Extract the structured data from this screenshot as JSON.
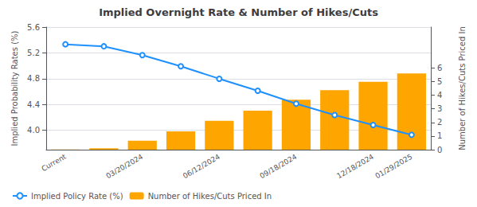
{
  "chart_data": {
    "type": "bar",
    "title": "Implied Overnight Rate & Number of Hikes/Cuts",
    "categories": [
      "Current",
      null,
      "03/20/2024",
      null,
      "06/12/2024",
      null,
      "09/18/2024",
      null,
      "12/18/2024",
      "01/29/2025"
    ],
    "series": [
      {
        "name": "Implied Policy Rate (%)",
        "type": "line",
        "color": "#1e90ff",
        "axis": "y",
        "values": [
          5.333,
          5.302,
          5.165,
          4.992,
          4.799,
          4.613,
          4.413,
          4.236,
          4.083,
          3.93
        ]
      },
      {
        "name": "Number of Hikes/Cuts Priced In",
        "type": "bar",
        "color": "#ffa500",
        "axis": "y2",
        "values": [
          0.012,
          0.108,
          0.66,
          1.351,
          2.121,
          2.868,
          3.668,
          4.372,
          4.985,
          5.598
        ]
      }
    ],
    "y_label": "Implied Probability Rates (%)",
    "y2_label": "Number of Hikes/Cuts Priced In",
    "ylim": [
      3.7,
      5.6
    ],
    "yticks": [
      {
        "value": 4.0,
        "label": "4.0"
      },
      4.4,
      4.8,
      5.2,
      5.6
    ],
    "y2lim": [
      0,
      9
    ],
    "y2ticks": [
      0,
      1,
      2,
      3,
      4,
      5,
      6
    ],
    "grid": true,
    "legend": "lower left"
  }
}
